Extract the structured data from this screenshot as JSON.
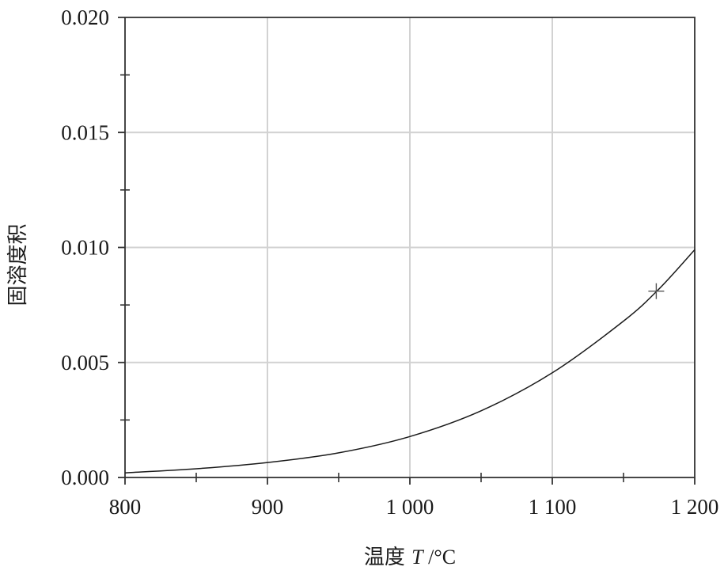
{
  "chart_data": {
    "type": "line",
    "title": "",
    "xlabel": {
      "prefix": "温度 ",
      "symbol": "T",
      "unit": " /°C"
    },
    "ylabel": "固溶度积",
    "xlim": [
      800,
      1200
    ],
    "ylim": [
      0,
      0.02
    ],
    "x_ticks": [
      800,
      900,
      1000,
      1100,
      1200
    ],
    "x_tick_labels": [
      "800",
      "900",
      "1 000",
      "1 100",
      "1 200"
    ],
    "y_ticks": [
      0,
      0.005,
      0.01,
      0.015,
      0.02
    ],
    "y_tick_labels": [
      "0.000",
      "0.005",
      "0.010",
      "0.015",
      "0.020"
    ],
    "grid": true,
    "series": [
      {
        "x": [
          800,
          850,
          900,
          950,
          1000,
          1050,
          1100,
          1150,
          1175,
          1200
        ],
        "y": [
          0.0002,
          0.00038,
          0.00065,
          0.00107,
          0.00178,
          0.0029,
          0.00455,
          0.0068,
          0.0082,
          0.0099
        ]
      }
    ],
    "markers": [
      {
        "type": "plus",
        "x": 1173,
        "y": 0.0081
      }
    ]
  }
}
